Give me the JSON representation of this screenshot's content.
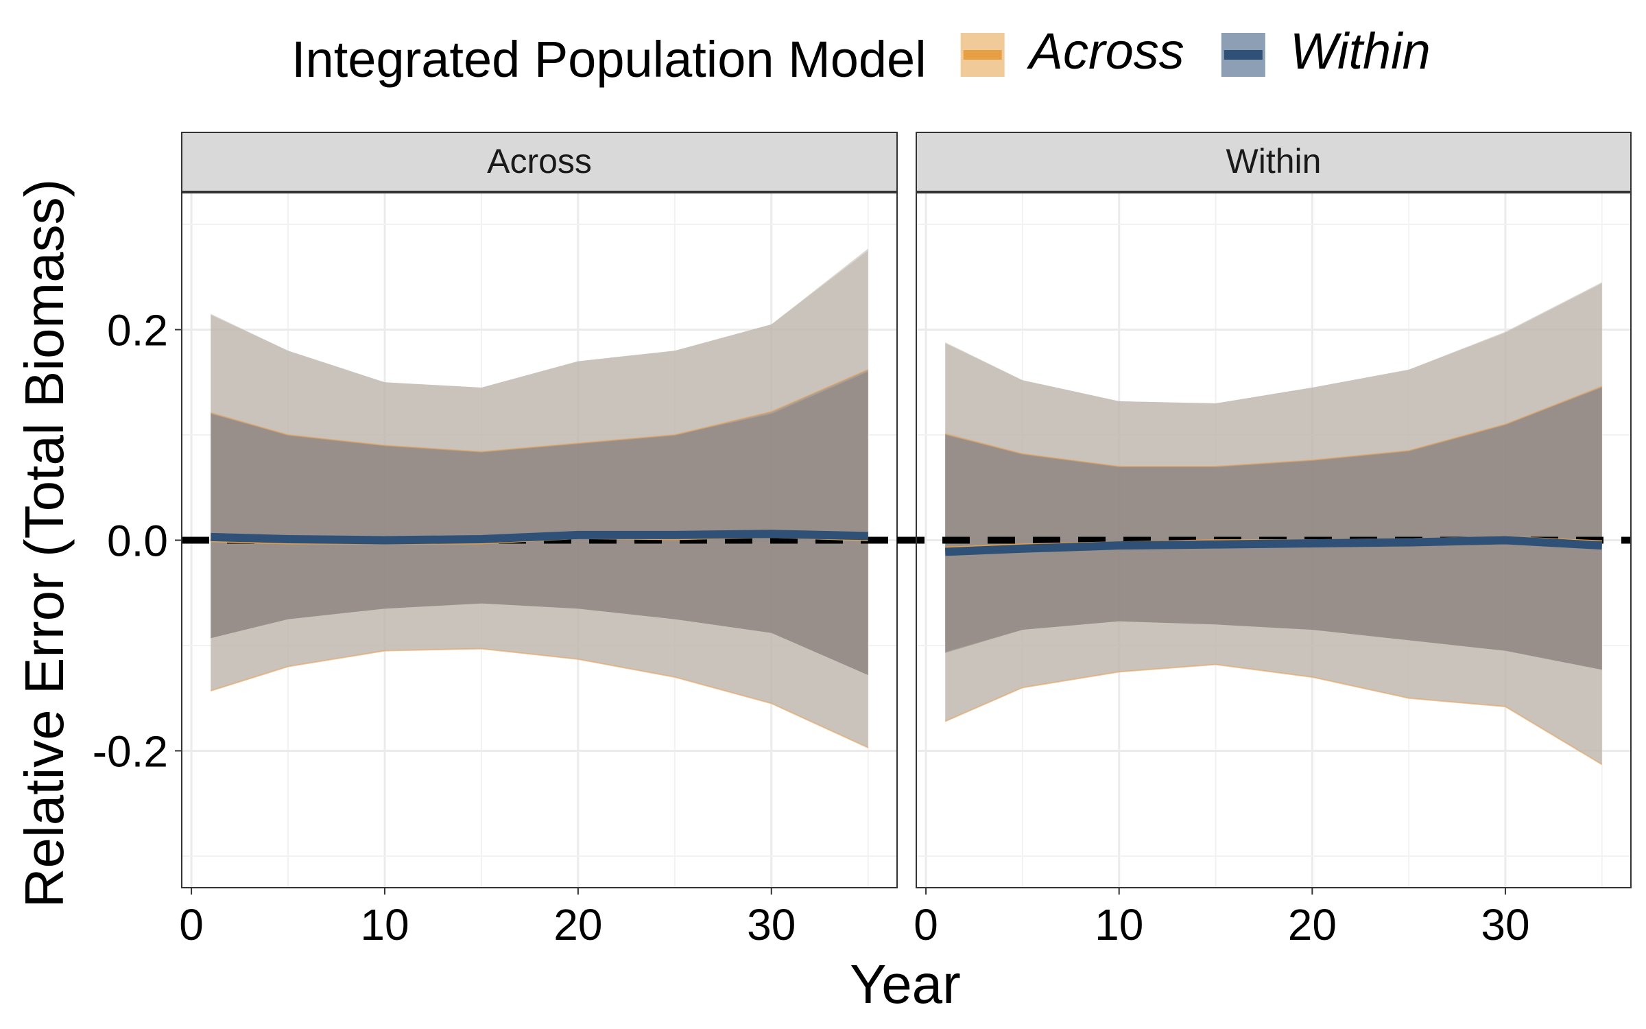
{
  "chart_data": {
    "type": "area",
    "legend": {
      "title": "Integrated Population Model",
      "position": "top",
      "entries": [
        {
          "label": "Across",
          "color": "#E69F45"
        },
        {
          "label": "Within",
          "color": "#2F5177"
        }
      ]
    },
    "xlabel": "Year",
    "ylabel": "Relative Error (Total Biomass)",
    "xlim": [
      -0.5,
      36.5
    ],
    "ylim": [
      -0.33,
      0.33
    ],
    "x_ticks": [
      0,
      10,
      20,
      30
    ],
    "x_tick_labels": [
      "0",
      "10",
      "20",
      "30"
    ],
    "y_ticks": [
      0.2,
      0.0,
      -0.2
    ],
    "y_tick_labels": [
      "0.2",
      "0.0",
      "-0.2"
    ],
    "reference_line": {
      "y": 0,
      "style": "dashed",
      "color": "#000000"
    },
    "grid": true,
    "colors": {
      "outer_band": "#BBB4AC",
      "inner_band": "#8F8681",
      "across_band_edge": "#E6A25A",
      "within_line": "#2F5177",
      "panel_strip": "#D9D9D9"
    },
    "panels": [
      {
        "strip_label": "Across",
        "x": [
          1,
          5,
          10,
          15,
          20,
          25,
          30,
          35
        ],
        "series": [
          {
            "name": "Across",
            "q_outer_upper": [
              0.215,
              0.18,
              0.15,
              0.145,
              0.17,
              0.18,
              0.205,
              0.277
            ],
            "q_outer_lower": [
              -0.143,
              -0.12,
              -0.105,
              -0.103,
              -0.113,
              -0.13,
              -0.155,
              -0.197
            ],
            "q_inner_upper": [
              0.121,
              0.1,
              0.09,
              0.084,
              0.092,
              0.1,
              0.122,
              0.162
            ],
            "q_inner_lower": [
              -0.093,
              -0.075,
              -0.065,
              -0.06,
              -0.065,
              -0.075,
              -0.088,
              -0.128
            ],
            "median": [
              0.002,
              0.0,
              0.0,
              0.0,
              0.005,
              0.004,
              0.006,
              0.003
            ]
          },
          {
            "name": "Within",
            "q_outer_upper": [
              0.214,
              0.18,
              0.15,
              0.145,
              0.17,
              0.18,
              0.205,
              0.275
            ],
            "q_outer_lower": [
              -0.143,
              -0.12,
              -0.105,
              -0.103,
              -0.113,
              -0.13,
              -0.155,
              -0.197
            ],
            "q_inner_upper": [
              0.12,
              0.1,
              0.09,
              0.084,
              0.092,
              0.1,
              0.12,
              0.16
            ],
            "q_inner_lower": [
              -0.093,
              -0.075,
              -0.065,
              -0.06,
              -0.065,
              -0.075,
              -0.088,
              -0.128
            ],
            "median": [
              0.003,
              0.001,
              0.0,
              0.001,
              0.005,
              0.005,
              0.006,
              0.004
            ]
          }
        ]
      },
      {
        "strip_label": "Within",
        "x": [
          1,
          5,
          10,
          15,
          20,
          25,
          30,
          35
        ],
        "series": [
          {
            "name": "Across",
            "q_outer_upper": [
              0.188,
              0.152,
              0.132,
              0.13,
              0.145,
              0.162,
              0.198,
              0.245
            ],
            "q_outer_lower": [
              -0.172,
              -0.14,
              -0.125,
              -0.118,
              -0.13,
              -0.15,
              -0.158,
              -0.213
            ],
            "q_inner_upper": [
              0.101,
              0.082,
              0.07,
              0.07,
              0.076,
              0.085,
              0.11,
              0.146
            ],
            "q_inner_lower": [
              -0.106,
              -0.085,
              -0.077,
              -0.08,
              -0.085,
              -0.095,
              -0.105,
              -0.123
            ],
            "median": [
              -0.01,
              -0.007,
              -0.005,
              -0.003,
              -0.003,
              -0.002,
              0.0,
              -0.004
            ]
          },
          {
            "name": "Within",
            "q_outer_upper": [
              0.187,
              0.152,
              0.132,
              0.13,
              0.145,
              0.162,
              0.197,
              0.244
            ],
            "q_outer_lower": [
              -0.172,
              -0.14,
              -0.125,
              -0.118,
              -0.13,
              -0.15,
              -0.158,
              -0.213
            ],
            "q_inner_upper": [
              0.1,
              0.082,
              0.07,
              0.07,
              0.076,
              0.085,
              0.11,
              0.145
            ],
            "q_inner_lower": [
              -0.107,
              -0.085,
              -0.077,
              -0.08,
              -0.085,
              -0.095,
              -0.105,
              -0.123
            ],
            "median": [
              -0.011,
              -0.008,
              -0.005,
              -0.004,
              -0.003,
              -0.002,
              0.0,
              -0.005
            ]
          }
        ]
      }
    ]
  }
}
